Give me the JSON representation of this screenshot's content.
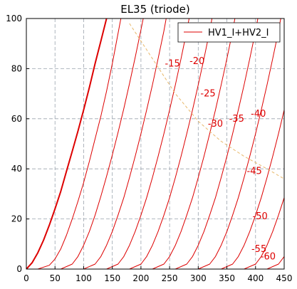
{
  "chart_data": {
    "type": "line",
    "title": "EL35  (triode)",
    "xlabel": "",
    "ylabel": "",
    "xlim": [
      0,
      450
    ],
    "ylim": [
      0,
      100
    ],
    "xticks": [
      "0",
      "50",
      "100",
      "150",
      "200",
      "250",
      "300",
      "350",
      "400",
      "450"
    ],
    "yticks": [
      "0",
      "20",
      "40",
      "60",
      "80",
      "100"
    ],
    "grid": true,
    "legend": {
      "placement": "top-right",
      "entries": [
        "HV1_I+HV2_I"
      ]
    },
    "colors": {
      "curves": "#dd0000",
      "loadline": "#e8b86a",
      "grid": "#9aa3ad"
    },
    "series": [
      {
        "values": [
          [
            0,
            0
          ],
          [
            10,
            2.5
          ],
          [
            20,
            6.5
          ],
          [
            30,
            11.5
          ],
          [
            40,
            17.5
          ],
          [
            50,
            24
          ],
          [
            60,
            31
          ],
          [
            70,
            39
          ],
          [
            80,
            47
          ],
          [
            90,
            55
          ],
          [
            100,
            63.5
          ],
          [
            110,
            72.5
          ],
          [
            120,
            82
          ],
          [
            130,
            91
          ],
          [
            140,
            100
          ]
        ]
      },
      {
        "values": [
          [
            0,
            0
          ],
          [
            20,
            0
          ],
          [
            40,
            1.5
          ],
          [
            50,
            4
          ],
          [
            60,
            8
          ],
          [
            70,
            13.5
          ],
          [
            80,
            20
          ],
          [
            90,
            27
          ],
          [
            100,
            34.5
          ],
          [
            110,
            43
          ],
          [
            120,
            52
          ],
          [
            130,
            61
          ],
          [
            140,
            71
          ],
          [
            150,
            82
          ],
          [
            160,
            94
          ],
          [
            165,
            100
          ]
        ]
      },
      {
        "values": [
          [
            0,
            0
          ],
          [
            60,
            0
          ],
          [
            80,
            2
          ],
          [
            90,
            5
          ],
          [
            100,
            9.5
          ],
          [
            110,
            15
          ],
          [
            120,
            21.5
          ],
          [
            130,
            29
          ],
          [
            140,
            37
          ],
          [
            150,
            45.5
          ],
          [
            160,
            54.5
          ],
          [
            170,
            64
          ],
          [
            180,
            74
          ],
          [
            190,
            84.5
          ],
          [
            200,
            95.5
          ],
          [
            204,
            100
          ]
        ]
      },
      {
        "values": [
          [
            0,
            0
          ],
          [
            100,
            0
          ],
          [
            120,
            2
          ],
          [
            130,
            5
          ],
          [
            140,
            9.5
          ],
          [
            150,
            15
          ],
          [
            160,
            21.5
          ],
          [
            170,
            28.5
          ],
          [
            180,
            36.5
          ],
          [
            190,
            45
          ],
          [
            200,
            54
          ],
          [
            210,
            63.5
          ],
          [
            220,
            73.5
          ],
          [
            230,
            84
          ],
          [
            240,
            95
          ],
          [
            244,
            100
          ]
        ]
      },
      {
        "values": [
          [
            0,
            0
          ],
          [
            140,
            0
          ],
          [
            160,
            2
          ],
          [
            170,
            5
          ],
          [
            180,
            9.5
          ],
          [
            190,
            15
          ],
          [
            200,
            21.5
          ],
          [
            210,
            28.5
          ],
          [
            220,
            36.5
          ],
          [
            230,
            45
          ],
          [
            240,
            54
          ],
          [
            250,
            63.5
          ],
          [
            260,
            73.5
          ],
          [
            270,
            84
          ],
          [
            280,
            95
          ],
          [
            284,
            100
          ]
        ]
      },
      {
        "values": [
          [
            0,
            0
          ],
          [
            180,
            0
          ],
          [
            200,
            2
          ],
          [
            210,
            5
          ],
          [
            220,
            9.5
          ],
          [
            230,
            15
          ],
          [
            240,
            21.5
          ],
          [
            250,
            28.5
          ],
          [
            260,
            36.5
          ],
          [
            270,
            45
          ],
          [
            280,
            54
          ],
          [
            290,
            63.5
          ],
          [
            300,
            73.5
          ],
          [
            310,
            84
          ],
          [
            320,
            95
          ],
          [
            324,
            100
          ]
        ]
      },
      {
        "values": [
          [
            0,
            0
          ],
          [
            220,
            0
          ],
          [
            240,
            2
          ],
          [
            250,
            5
          ],
          [
            260,
            9.5
          ],
          [
            270,
            15
          ],
          [
            280,
            21.5
          ],
          [
            290,
            28.5
          ],
          [
            300,
            36.5
          ],
          [
            310,
            45
          ],
          [
            320,
            54
          ],
          [
            330,
            63.5
          ],
          [
            340,
            73.5
          ],
          [
            350,
            84
          ],
          [
            360,
            95
          ],
          [
            364,
            100
          ]
        ]
      },
      {
        "values": [
          [
            0,
            0
          ],
          [
            260,
            0
          ],
          [
            280,
            2
          ],
          [
            290,
            5
          ],
          [
            300,
            9.5
          ],
          [
            310,
            15
          ],
          [
            320,
            21.5
          ],
          [
            330,
            28.5
          ],
          [
            340,
            36.5
          ],
          [
            350,
            45
          ],
          [
            360,
            54
          ],
          [
            370,
            63.5
          ],
          [
            380,
            73.5
          ],
          [
            390,
            84
          ],
          [
            400,
            95
          ],
          [
            404,
            100
          ]
        ]
      },
      {
        "values": [
          [
            0,
            0
          ],
          [
            300,
            0
          ],
          [
            320,
            2
          ],
          [
            330,
            5
          ],
          [
            340,
            9.5
          ],
          [
            350,
            15
          ],
          [
            360,
            21.5
          ],
          [
            370,
            28.5
          ],
          [
            380,
            36.5
          ],
          [
            390,
            45
          ],
          [
            400,
            54
          ],
          [
            410,
            63.5
          ],
          [
            420,
            73.5
          ],
          [
            430,
            84
          ],
          [
            440,
            95
          ],
          [
            444,
            100
          ]
        ]
      },
      {
        "values": [
          [
            0,
            0
          ],
          [
            340,
            0
          ],
          [
            360,
            2
          ],
          [
            370,
            5
          ],
          [
            380,
            9.5
          ],
          [
            390,
            15
          ],
          [
            400,
            21.5
          ],
          [
            410,
            28.5
          ],
          [
            420,
            36.5
          ],
          [
            430,
            45
          ],
          [
            440,
            54
          ],
          [
            450,
            63.5
          ]
        ]
      },
      {
        "values": [
          [
            0,
            0
          ],
          [
            380,
            0
          ],
          [
            400,
            2
          ],
          [
            410,
            5
          ],
          [
            420,
            9.5
          ],
          [
            430,
            15
          ],
          [
            440,
            21.5
          ],
          [
            450,
            28.5
          ]
        ]
      },
      {
        "values": [
          [
            0,
            0
          ],
          [
            420,
            0
          ],
          [
            440,
            2
          ],
          [
            450,
            5
          ]
        ]
      }
    ],
    "loadline": {
      "values": [
        [
          180,
          98
        ],
        [
          220,
          84
        ],
        [
          260,
          70
        ],
        [
          300,
          59
        ],
        [
          340,
          51
        ],
        [
          380,
          45
        ],
        [
          420,
          40
        ],
        [
          450,
          36
        ]
      ]
    },
    "annotations": [
      {
        "text": "-15",
        "x": 255,
        "y": 82
      },
      {
        "text": "-20",
        "x": 298,
        "y": 83
      },
      {
        "text": "-25",
        "x": 317,
        "y": 70
      },
      {
        "text": "-30",
        "x": 330,
        "y": 58
      },
      {
        "text": "-35",
        "x": 367,
        "y": 60
      },
      {
        "text": "-40",
        "x": 405,
        "y": 62
      },
      {
        "text": "-45",
        "x": 398,
        "y": 39
      },
      {
        "text": "-50",
        "x": 408,
        "y": 21
      },
      {
        "text": "-55",
        "x": 406,
        "y": 8
      },
      {
        "text": "-60",
        "x": 422,
        "y": 5
      }
    ]
  }
}
